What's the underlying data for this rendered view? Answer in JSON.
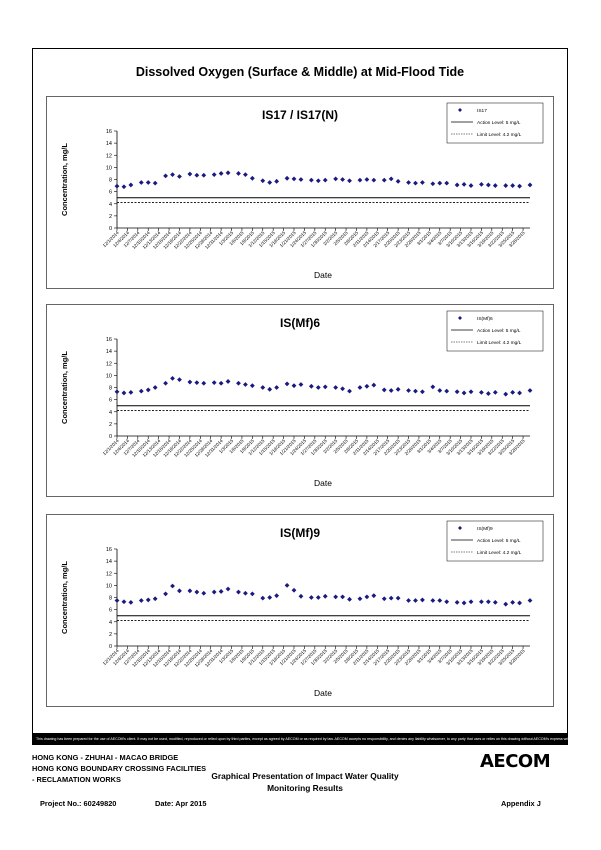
{
  "page_title": "Dissolved Oxygen (Surface & Middle) at Mid-Flood Tide",
  "disclaimer": "This drawing has been prepared for the use of AECOM's client. It may not be used, modified, reproduced or relied upon by third parties, except as agreed by AECOM or as required by law. AECOM accepts no responsibility, and denies any liability whatsoever, to any party that uses or relies on this drawing without AECOM's express written consent.",
  "footer": {
    "line1": "HONG KONG - ZHUHAI - MACAO BRIDGE",
    "line2": "HONG KONG BOUNDARY CROSSING FACILITIES",
    "line3": "- RECLAMATION WORKS",
    "heading1": "Graphical Presentation of Impact Water Quality",
    "heading2": "Monitoring Results",
    "project": "Project No.: 60249820",
    "date": "Date: Apr 2015",
    "appendix": "Appendix J",
    "logo": "AECOM"
  },
  "colors": {
    "marker": "#1a1a80",
    "axis": "#000000"
  },
  "chart_data": [
    {
      "type": "scatter",
      "title": "IS17 / IS17(N)",
      "xlabel": "Date",
      "ylabel": "Concentration, mg/L",
      "ylim": [
        0,
        16
      ],
      "yticks": [
        0,
        2,
        4,
        6,
        8,
        10,
        12,
        14,
        16
      ],
      "xlim": [
        "2014-12-01",
        "2015-03-30"
      ],
      "xticks": [
        "12/1/2014",
        "12/4/2014",
        "12/7/2014",
        "12/10/2014",
        "12/13/2014",
        "12/16/2014",
        "12/19/2014",
        "12/22/2014",
        "12/25/2014",
        "12/28/2014",
        "12/31/2014",
        "1/3/2015",
        "1/6/2015",
        "1/9/2015",
        "1/12/2015",
        "1/15/2015",
        "1/18/2015",
        "1/21/2015",
        "1/24/2015",
        "1/27/2015",
        "1/30/2015",
        "2/2/2015",
        "2/5/2015",
        "2/8/2015",
        "2/11/2015",
        "2/14/2015",
        "2/17/2015",
        "2/20/2015",
        "2/23/2015",
        "2/26/2015",
        "3/1/2015",
        "3/4/2015",
        "3/7/2015",
        "3/10/2015",
        "3/13/2015",
        "3/16/2015",
        "3/19/2015",
        "3/22/2015",
        "3/25/2015",
        "3/28/2015"
      ],
      "legend_position": "top-right",
      "legend": {
        "series": "IS17",
        "action": "Action Level: 5 mg/L",
        "limit": "Limit Level: 4.2 mg/L"
      },
      "action_level": 5,
      "limit_level": 4.2,
      "series": [
        {
          "name": "IS17",
          "x": [
            "2014-12-01",
            "2014-12-03",
            "2014-12-05",
            "2014-12-08",
            "2014-12-10",
            "2014-12-12",
            "2014-12-15",
            "2014-12-17",
            "2014-12-19",
            "2014-12-22",
            "2014-12-24",
            "2014-12-26",
            "2014-12-29",
            "2014-12-31",
            "2015-01-02",
            "2015-01-05",
            "2015-01-07",
            "2015-01-09",
            "2015-01-12",
            "2015-01-14",
            "2015-01-16",
            "2015-01-19",
            "2015-01-21",
            "2015-01-23",
            "2015-01-26",
            "2015-01-28",
            "2015-01-30",
            "2015-02-02",
            "2015-02-04",
            "2015-02-06",
            "2015-02-09",
            "2015-02-11",
            "2015-02-13",
            "2015-02-16",
            "2015-02-18",
            "2015-02-20",
            "2015-02-23",
            "2015-02-25",
            "2015-02-27",
            "2015-03-02",
            "2015-03-04",
            "2015-03-06",
            "2015-03-09",
            "2015-03-11",
            "2015-03-13",
            "2015-03-16",
            "2015-03-18",
            "2015-03-20",
            "2015-03-23",
            "2015-03-25",
            "2015-03-27",
            "2015-03-30"
          ],
          "y": [
            6.9,
            6.8,
            7.1,
            7.5,
            7.5,
            7.4,
            8.6,
            8.8,
            8.5,
            8.9,
            8.7,
            8.7,
            8.8,
            9.0,
            9.1,
            9.0,
            8.8,
            8.2,
            7.8,
            7.5,
            7.7,
            8.2,
            8.1,
            8.0,
            7.9,
            7.8,
            7.9,
            8.1,
            8.0,
            7.8,
            7.9,
            8.0,
            7.9,
            7.9,
            8.1,
            7.7,
            7.5,
            7.4,
            7.5,
            7.3,
            7.4,
            7.4,
            7.1,
            7.2,
            7.0,
            7.2,
            7.1,
            7.0,
            7.0,
            7.0,
            6.9,
            7.1
          ]
        }
      ]
    },
    {
      "type": "scatter",
      "title": "IS(Mf)6",
      "xlabel": "Date",
      "ylabel": "Concentration, mg/L",
      "ylim": [
        0,
        16
      ],
      "yticks": [
        0,
        2,
        4,
        6,
        8,
        10,
        12,
        14,
        16
      ],
      "xlim": [
        "2014-12-01",
        "2015-03-30"
      ],
      "xticks": [
        "12/1/2014",
        "12/4/2014",
        "12/7/2014",
        "12/10/2014",
        "12/13/2014",
        "12/16/2014",
        "12/19/2014",
        "12/22/2014",
        "12/25/2014",
        "12/28/2014",
        "12/31/2014",
        "1/3/2015",
        "1/6/2015",
        "1/9/2015",
        "1/12/2015",
        "1/15/2015",
        "1/18/2015",
        "1/21/2015",
        "1/24/2015",
        "1/27/2015",
        "1/30/2015",
        "2/2/2015",
        "2/5/2015",
        "2/8/2015",
        "2/11/2015",
        "2/14/2015",
        "2/17/2015",
        "2/20/2015",
        "2/23/2015",
        "2/26/2015",
        "3/1/2015",
        "3/4/2015",
        "3/7/2015",
        "3/10/2015",
        "3/13/2015",
        "3/16/2015",
        "3/19/2015",
        "3/22/2015",
        "3/25/2015",
        "3/28/2015"
      ],
      "legend_position": "top-right",
      "legend": {
        "series": "IS(Mf)6",
        "action": "Action Level: 5 mg/L",
        "limit": "Limit Level: 4.2 mg/L"
      },
      "action_level": 5,
      "limit_level": 4.2,
      "series": [
        {
          "name": "IS(Mf)6",
          "x": [
            "2014-12-01",
            "2014-12-03",
            "2014-12-05",
            "2014-12-08",
            "2014-12-10",
            "2014-12-12",
            "2014-12-15",
            "2014-12-17",
            "2014-12-19",
            "2014-12-22",
            "2014-12-24",
            "2014-12-26",
            "2014-12-29",
            "2014-12-31",
            "2015-01-02",
            "2015-01-05",
            "2015-01-07",
            "2015-01-09",
            "2015-01-12",
            "2015-01-14",
            "2015-01-16",
            "2015-01-19",
            "2015-01-21",
            "2015-01-23",
            "2015-01-26",
            "2015-01-28",
            "2015-01-30",
            "2015-02-02",
            "2015-02-04",
            "2015-02-06",
            "2015-02-09",
            "2015-02-11",
            "2015-02-13",
            "2015-02-16",
            "2015-02-18",
            "2015-02-20",
            "2015-02-23",
            "2015-02-25",
            "2015-02-27",
            "2015-03-02",
            "2015-03-04",
            "2015-03-06",
            "2015-03-09",
            "2015-03-11",
            "2015-03-13",
            "2015-03-16",
            "2015-03-18",
            "2015-03-20",
            "2015-03-23",
            "2015-03-25",
            "2015-03-27",
            "2015-03-30"
          ],
          "y": [
            7.3,
            7.1,
            7.2,
            7.4,
            7.6,
            8.0,
            8.7,
            9.5,
            9.3,
            8.9,
            8.8,
            8.7,
            8.8,
            8.7,
            9.0,
            8.7,
            8.5,
            8.3,
            8.0,
            7.7,
            8.0,
            8.6,
            8.3,
            8.5,
            8.2,
            8.0,
            8.1,
            8.0,
            7.8,
            7.4,
            8.0,
            8.2,
            8.4,
            7.6,
            7.5,
            7.7,
            7.5,
            7.4,
            7.3,
            8.1,
            7.5,
            7.4,
            7.3,
            7.1,
            7.3,
            7.2,
            7.0,
            7.2,
            6.9,
            7.2,
            7.1,
            7.5
          ]
        }
      ]
    },
    {
      "type": "scatter",
      "title": "IS(Mf)9",
      "xlabel": "Date",
      "ylabel": "Concentration, mg/L",
      "ylim": [
        0,
        16
      ],
      "yticks": [
        0,
        2,
        4,
        6,
        8,
        10,
        12,
        14,
        16
      ],
      "xlim": [
        "2014-12-01",
        "2015-03-30"
      ],
      "xticks": [
        "12/1/2014",
        "12/4/2014",
        "12/7/2014",
        "12/10/2014",
        "12/13/2014",
        "12/16/2014",
        "12/19/2014",
        "12/22/2014",
        "12/25/2014",
        "12/28/2014",
        "12/31/2014",
        "1/3/2015",
        "1/6/2015",
        "1/9/2015",
        "1/12/2015",
        "1/15/2015",
        "1/18/2015",
        "1/21/2015",
        "1/24/2015",
        "1/27/2015",
        "1/30/2015",
        "2/2/2015",
        "2/5/2015",
        "2/8/2015",
        "2/11/2015",
        "2/14/2015",
        "2/17/2015",
        "2/20/2015",
        "2/23/2015",
        "2/26/2015",
        "3/1/2015",
        "3/4/2015",
        "3/7/2015",
        "3/10/2015",
        "3/13/2015",
        "3/16/2015",
        "3/19/2015",
        "3/22/2015",
        "3/25/2015",
        "3/28/2015"
      ],
      "legend_position": "top-right",
      "legend": {
        "series": "IS(Mf)9",
        "action": "Action Level: 5 mg/L",
        "limit": "Limit Level: 4.2 mg/L"
      },
      "action_level": 5,
      "limit_level": 4.2,
      "series": [
        {
          "name": "IS(Mf)9",
          "x": [
            "2014-12-01",
            "2014-12-03",
            "2014-12-05",
            "2014-12-08",
            "2014-12-10",
            "2014-12-12",
            "2014-12-15",
            "2014-12-17",
            "2014-12-19",
            "2014-12-22",
            "2014-12-24",
            "2014-12-26",
            "2014-12-29",
            "2014-12-31",
            "2015-01-02",
            "2015-01-05",
            "2015-01-07",
            "2015-01-09",
            "2015-01-12",
            "2015-01-14",
            "2015-01-16",
            "2015-01-19",
            "2015-01-21",
            "2015-01-23",
            "2015-01-26",
            "2015-01-28",
            "2015-01-30",
            "2015-02-02",
            "2015-02-04",
            "2015-02-06",
            "2015-02-09",
            "2015-02-11",
            "2015-02-13",
            "2015-02-16",
            "2015-02-18",
            "2015-02-20",
            "2015-02-23",
            "2015-02-25",
            "2015-02-27",
            "2015-03-02",
            "2015-03-04",
            "2015-03-06",
            "2015-03-09",
            "2015-03-11",
            "2015-03-13",
            "2015-03-16",
            "2015-03-18",
            "2015-03-20",
            "2015-03-23",
            "2015-03-25",
            "2015-03-27",
            "2015-03-30"
          ],
          "y": [
            7.5,
            7.3,
            7.2,
            7.5,
            7.6,
            7.8,
            8.6,
            9.9,
            9.1,
            9.1,
            8.9,
            8.7,
            8.9,
            9.0,
            9.4,
            8.9,
            8.7,
            8.6,
            7.9,
            8.0,
            8.3,
            10.0,
            9.2,
            8.2,
            8.0,
            8.0,
            8.2,
            8.1,
            8.1,
            7.7,
            7.8,
            8.1,
            8.3,
            7.8,
            7.9,
            7.9,
            7.5,
            7.5,
            7.6,
            7.5,
            7.5,
            7.3,
            7.2,
            7.1,
            7.3,
            7.3,
            7.3,
            7.2,
            6.9,
            7.2,
            7.1,
            7.5
          ]
        }
      ]
    }
  ]
}
